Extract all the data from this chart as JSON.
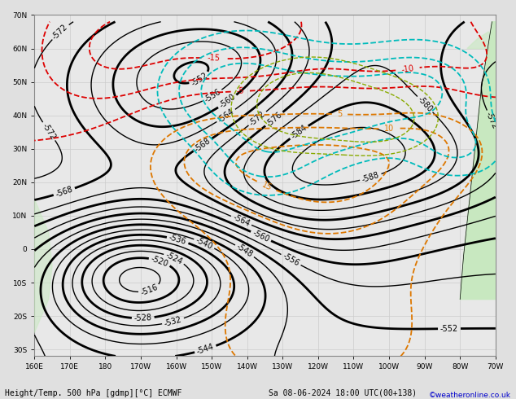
{
  "title_bottom": "Height/Temp. 500 hPa [gdmp][°C] ECMWF",
  "title_bottom_right": "Sa 08-06-2024 18:00 UTC(00+138)",
  "copyright": "©weatheronline.co.uk",
  "bg_color": "#e0e0e0",
  "map_bg_color": "#e8e8e8",
  "land_color": "#c8e8c0",
  "grid_color": "#cccccc",
  "figsize": [
    6.34,
    4.9
  ],
  "dpi": 100,
  "z500_color": "#000000",
  "temp_neg_color": "#dd0000",
  "temp_pos_color": "#dd7700",
  "rain_color": "#00bbbb",
  "slp_color": "#88aa44"
}
